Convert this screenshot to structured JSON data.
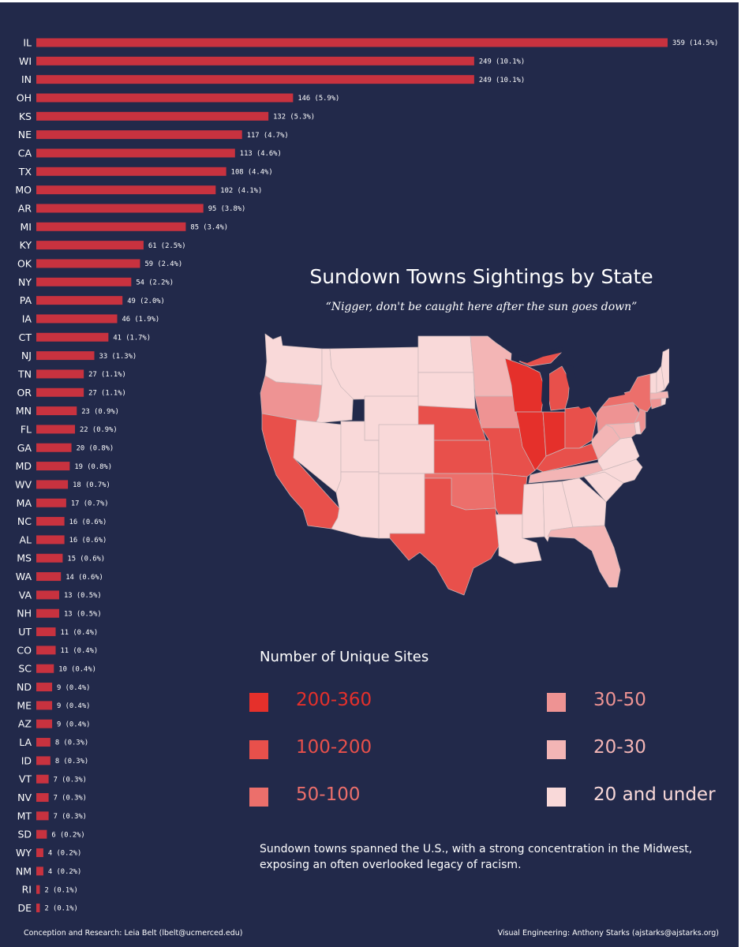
{
  "chart_data": [
    {
      "type": "bar",
      "orientation": "horizontal",
      "categories": [
        "IL",
        "WI",
        "IN",
        "OH",
        "KS",
        "NE",
        "CA",
        "TX",
        "MO",
        "AR",
        "MI",
        "KY",
        "OK",
        "NY",
        "PA",
        "IA",
        "CT",
        "NJ",
        "TN",
        "OR",
        "MN",
        "FL",
        "GA",
        "MD",
        "WV",
        "MA",
        "NC",
        "AL",
        "MS",
        "WA",
        "VA",
        "NH",
        "UT",
        "CO",
        "SC",
        "ND",
        "ME",
        "AZ",
        "LA",
        "ID",
        "VT",
        "NV",
        "MT",
        "SD",
        "WY",
        "NM",
        "RI",
        "DE"
      ],
      "values": [
        359,
        249,
        249,
        146,
        132,
        117,
        113,
        108,
        102,
        95,
        85,
        61,
        59,
        54,
        49,
        46,
        41,
        33,
        27,
        27,
        23,
        22,
        20,
        19,
        18,
        17,
        16,
        16,
        15,
        14,
        13,
        13,
        11,
        11,
        10,
        9,
        9,
        9,
        8,
        8,
        7,
        7,
        7,
        6,
        4,
        4,
        2,
        2
      ],
      "value_labels": [
        "359 (14.5%)",
        "249 (10.1%)",
        "249 (10.1%)",
        "146 (5.9%)",
        "132 (5.3%)",
        "117 (4.7%)",
        "113 (4.6%)",
        "108 (4.4%)",
        "102 (4.1%)",
        "95 (3.8%)",
        "85 (3.4%)",
        "61 (2.5%)",
        "59 (2.4%)",
        "54 (2.2%)",
        "49 (2.0%)",
        "46 (1.9%)",
        "41 (1.7%)",
        "33 (1.3%)",
        "27 (1.1%)",
        "27 (1.1%)",
        "23 (0.9%)",
        "22 (0.9%)",
        "20 (0.8%)",
        "19 (0.8%)",
        "18 (0.7%)",
        "17 (0.7%)",
        "16 (0.6%)",
        "16 (0.6%)",
        "15 (0.6%)",
        "14 (0.6%)",
        "13 (0.5%)",
        "13 (0.5%)",
        "11 (0.4%)",
        "11 (0.4%)",
        "10 (0.4%)",
        "9 (0.4%)",
        "9 (0.4%)",
        "9 (0.4%)",
        "8 (0.3%)",
        "8 (0.3%)",
        "7 (0.3%)",
        "7 (0.3%)",
        "7 (0.3%)",
        "6 (0.2%)",
        "4 (0.2%)",
        "4 (0.2%)",
        "2 (0.1%)",
        "2 (0.1%)"
      ],
      "bar_color": "#c8323f",
      "xlim": [
        0,
        359
      ]
    },
    {
      "type": "choropleth",
      "title": "Sundown Towns Sightings by State",
      "subtitle": "“Nigger, don't be caught here after the sun goes down”",
      "regions": "US states (lower 48)",
      "bins": [
        "200-360",
        "100-200",
        "50-100",
        "30-50",
        "20-30",
        "20 and under"
      ]
    }
  ],
  "title": "Sundown Towns Sightings by State",
  "subtitle": "“Nigger, don't be caught here after the sun goes down”",
  "legend": {
    "title": "Number of Unique Sites",
    "items": [
      {
        "label": "200-360",
        "color": "#e5302b"
      },
      {
        "label": "100-200",
        "color": "#e8504b"
      },
      {
        "label": "50-100",
        "color": "#ec6f6b"
      },
      {
        "label": "30-50",
        "color": "#ee9393"
      },
      {
        "label": "20-30",
        "color": "#f3b5b5"
      },
      {
        "label": "20 and under",
        "color": "#f9d9d9"
      }
    ]
  },
  "caption": "Sundown towns spanned the U.S., with a strong concentration in the Midwest, exposing an often overlooked legacy of racism.",
  "credits": {
    "left": "Conception and Research: Leia Belt (lbelt@ucmerced.edu)",
    "right": "Visual Engineering: Anthony Starks (ajstarks@ajstarks.org)"
  },
  "colors": {
    "background": "#22294a",
    "text": "#ffffff",
    "bar": "#c8323f",
    "state_border": "#c9b7b9"
  }
}
